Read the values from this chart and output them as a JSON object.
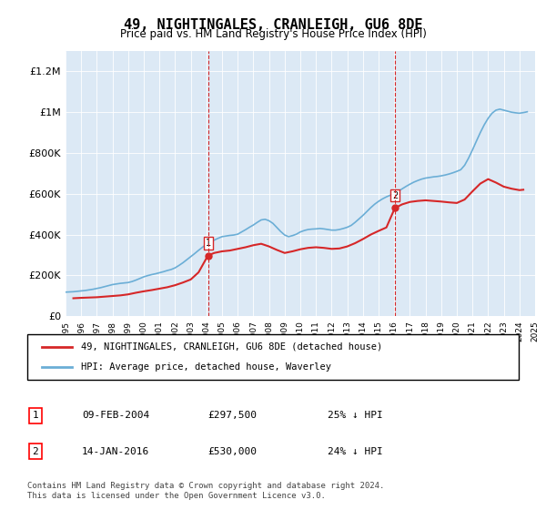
{
  "title": "49, NIGHTINGALES, CRANLEIGH, GU6 8DE",
  "subtitle": "Price paid vs. HM Land Registry's House Price Index (HPI)",
  "background_color": "#dce9f5",
  "plot_bg_color": "#dce9f5",
  "hpi_color": "#6baed6",
  "price_color": "#d62728",
  "vline_color": "#d62728",
  "ylim": [
    0,
    1300000
  ],
  "yticks": [
    0,
    200000,
    400000,
    600000,
    800000,
    1000000,
    1200000
  ],
  "ytick_labels": [
    "£0",
    "£200K",
    "£400K",
    "£600K",
    "£800K",
    "£1M",
    "£1.2M"
  ],
  "x_start_year": 1995,
  "x_end_year": 2025,
  "marker1_year": 2004.1,
  "marker1_price": 297500,
  "marker2_year": 2016.04,
  "marker2_price": 530000,
  "legend_label_price": "49, NIGHTINGALES, CRANLEIGH, GU6 8DE (detached house)",
  "legend_label_hpi": "HPI: Average price, detached house, Waverley",
  "table_rows": [
    {
      "num": "1",
      "date": "09-FEB-2004",
      "price": "£297,500",
      "pct": "25% ↓ HPI"
    },
    {
      "num": "2",
      "date": "14-JAN-2016",
      "price": "£530,000",
      "pct": "24% ↓ HPI"
    }
  ],
  "footnote": "Contains HM Land Registry data © Crown copyright and database right 2024.\nThis data is licensed under the Open Government Licence v3.0.",
  "hpi_data_x": [
    1995,
    1995.25,
    1995.5,
    1995.75,
    1996,
    1996.25,
    1996.5,
    1996.75,
    1997,
    1997.25,
    1997.5,
    1997.75,
    1998,
    1998.25,
    1998.5,
    1998.75,
    1999,
    1999.25,
    1999.5,
    1999.75,
    2000,
    2000.25,
    2000.5,
    2000.75,
    2001,
    2001.25,
    2001.5,
    2001.75,
    2002,
    2002.25,
    2002.5,
    2002.75,
    2003,
    2003.25,
    2003.5,
    2003.75,
    2004,
    2004.25,
    2004.5,
    2004.75,
    2005,
    2005.25,
    2005.5,
    2005.75,
    2006,
    2006.25,
    2006.5,
    2006.75,
    2007,
    2007.25,
    2007.5,
    2007.75,
    2008,
    2008.25,
    2008.5,
    2008.75,
    2009,
    2009.25,
    2009.5,
    2009.75,
    2010,
    2010.25,
    2010.5,
    2010.75,
    2011,
    2011.25,
    2011.5,
    2011.75,
    2012,
    2012.25,
    2012.5,
    2012.75,
    2013,
    2013.25,
    2013.5,
    2013.75,
    2014,
    2014.25,
    2014.5,
    2014.75,
    2015,
    2015.25,
    2015.5,
    2015.75,
    2016,
    2016.25,
    2016.5,
    2016.75,
    2017,
    2017.25,
    2017.5,
    2017.75,
    2018,
    2018.25,
    2018.5,
    2018.75,
    2019,
    2019.25,
    2019.5,
    2019.75,
    2020,
    2020.25,
    2020.5,
    2020.75,
    2021,
    2021.25,
    2021.5,
    2021.75,
    2022,
    2022.25,
    2022.5,
    2022.75,
    2023,
    2023.25,
    2023.5,
    2023.75,
    2024,
    2024.25,
    2024.5
  ],
  "hpi_data_y": [
    118000,
    119000,
    120000,
    122000,
    124000,
    126000,
    129000,
    132000,
    136000,
    140000,
    145000,
    150000,
    155000,
    158000,
    161000,
    163000,
    165000,
    170000,
    177000,
    185000,
    193000,
    199000,
    204000,
    208000,
    213000,
    218000,
    224000,
    229000,
    237000,
    249000,
    262000,
    277000,
    292000,
    307000,
    323000,
    338000,
    352000,
    363000,
    373000,
    382000,
    390000,
    393000,
    396000,
    398000,
    402000,
    413000,
    424000,
    436000,
    447000,
    460000,
    472000,
    475000,
    468000,
    455000,
    435000,
    415000,
    398000,
    390000,
    395000,
    402000,
    413000,
    420000,
    425000,
    427000,
    428000,
    430000,
    428000,
    425000,
    422000,
    422000,
    425000,
    430000,
    436000,
    445000,
    460000,
    477000,
    494000,
    513000,
    532000,
    549000,
    563000,
    575000,
    585000,
    593000,
    600000,
    612000,
    624000,
    636000,
    647000,
    657000,
    665000,
    672000,
    677000,
    680000,
    683000,
    685000,
    688000,
    692000,
    697000,
    703000,
    710000,
    718000,
    740000,
    775000,
    815000,
    858000,
    900000,
    938000,
    970000,
    995000,
    1010000,
    1015000,
    1010000,
    1005000,
    1000000,
    997000,
    995000,
    998000,
    1002000
  ],
  "price_data_x": [
    1995.5,
    1996.0,
    1997.0,
    1997.5,
    1998.0,
    1998.5,
    1999.0,
    1999.5,
    2000.0,
    2000.5,
    2001.0,
    2001.5,
    2002.0,
    2002.5,
    2003.0,
    2003.5,
    2004.1,
    2004.5,
    2005.0,
    2005.5,
    2006.0,
    2006.5,
    2007.0,
    2007.5,
    2008.0,
    2008.5,
    2009.0,
    2009.5,
    2010.0,
    2010.5,
    2011.0,
    2011.5,
    2012.0,
    2012.5,
    2013.0,
    2013.5,
    2014.0,
    2014.5,
    2015.0,
    2015.5,
    2016.04,
    2016.5,
    2017.0,
    2017.5,
    2018.0,
    2018.5,
    2019.0,
    2019.5,
    2020.0,
    2020.5,
    2021.0,
    2021.5,
    2022.0,
    2022.5,
    2023.0,
    2023.5,
    2024.0,
    2024.25
  ],
  "price_data_y": [
    88000,
    90000,
    93000,
    96000,
    99000,
    102000,
    107000,
    115000,
    122000,
    128000,
    135000,
    142000,
    152000,
    165000,
    180000,
    215000,
    297500,
    310000,
    318000,
    322000,
    330000,
    338000,
    348000,
    355000,
    342000,
    325000,
    310000,
    318000,
    328000,
    335000,
    338000,
    335000,
    330000,
    332000,
    342000,
    358000,
    378000,
    400000,
    418000,
    435000,
    530000,
    548000,
    560000,
    565000,
    568000,
    565000,
    562000,
    558000,
    555000,
    572000,
    612000,
    650000,
    672000,
    655000,
    635000,
    625000,
    618000,
    620000
  ]
}
